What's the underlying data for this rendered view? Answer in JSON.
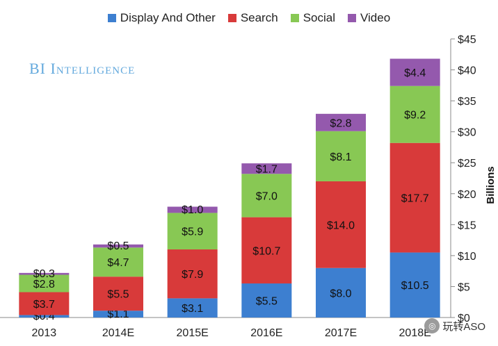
{
  "chart_data": {
    "type": "bar",
    "stacked": true,
    "title": "",
    "xlabel": "",
    "ylabel": "Billions",
    "ylim": [
      0,
      45
    ],
    "yticks": [
      0,
      5,
      10,
      15,
      20,
      25,
      30,
      35,
      40,
      45
    ],
    "ytick_labels": [
      "$0",
      "$5",
      "$10",
      "$15",
      "$20",
      "$25",
      "$30",
      "$35",
      "$40",
      "$45"
    ],
    "categories": [
      "2013",
      "2014E",
      "2015E",
      "2016E",
      "2017E",
      "2018E"
    ],
    "series": [
      {
        "name": "Display And Other",
        "color": "#3d7fd0",
        "values": [
          0.4,
          1.1,
          3.1,
          5.5,
          8.0,
          10.5
        ],
        "labels": [
          "$0.4",
          "$1.1",
          "$3.1",
          "$5.5",
          "$8.0",
          "$10.5"
        ]
      },
      {
        "name": "Search",
        "color": "#d83a3a",
        "values": [
          3.7,
          5.5,
          7.9,
          10.7,
          14.0,
          17.7
        ],
        "labels": [
          "$3.7",
          "$5.5",
          "$7.9",
          "$10.7",
          "$14.0",
          "$17.7"
        ]
      },
      {
        "name": "Social",
        "color": "#88c854",
        "values": [
          2.8,
          4.7,
          5.9,
          7.0,
          8.1,
          9.2
        ],
        "labels": [
          "$2.8",
          "$4.7",
          "$5.9",
          "$7.0",
          "$8.1",
          "$9.2"
        ]
      },
      {
        "name": "Video",
        "color": "#9459ad",
        "values": [
          0.3,
          0.5,
          1.0,
          1.7,
          2.8,
          4.4
        ],
        "labels": [
          "$0.3",
          "$0.5",
          "$1.0",
          "$1.7",
          "$2.8",
          "$4.4"
        ]
      }
    ],
    "legend_position": "top-center",
    "yaxis_position": "right"
  },
  "brand": {
    "text": "BI Intelligence"
  },
  "watermark": {
    "icon": "wechat-icon",
    "icon_glyph": "◎",
    "text": "玩转ASO"
  }
}
